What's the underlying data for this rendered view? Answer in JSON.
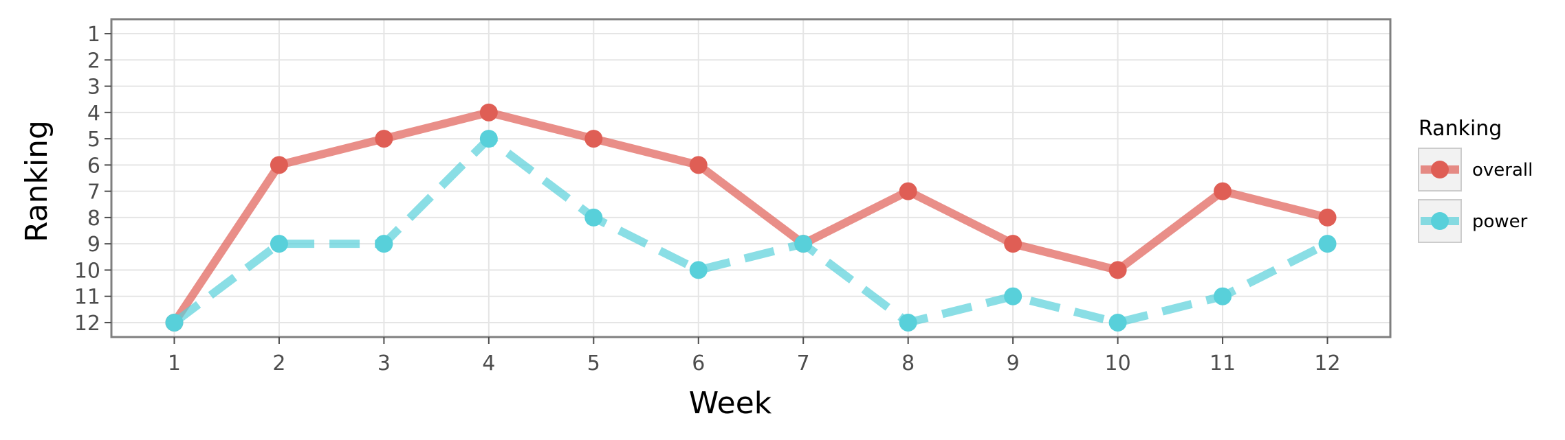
{
  "chart_data": {
    "type": "line",
    "xlabel": "Week",
    "ylabel": "Ranking",
    "x": [
      1,
      2,
      3,
      4,
      5,
      6,
      7,
      8,
      9,
      10,
      11,
      12
    ],
    "x_ticks": [
      "1",
      "2",
      "3",
      "4",
      "5",
      "6",
      "7",
      "8",
      "9",
      "10",
      "11",
      "12"
    ],
    "y_ticks": [
      "1",
      "2",
      "3",
      "4",
      "5",
      "6",
      "7",
      "8",
      "9",
      "10",
      "11",
      "12"
    ],
    "y_reversed": true,
    "xlim": [
      0.4,
      12.6
    ],
    "ylim": [
      0.45,
      12.55
    ],
    "grid": true,
    "legend": {
      "title": "Ranking",
      "position": "right"
    },
    "series": [
      {
        "name": "overall",
        "values": [
          12,
          6,
          5,
          4,
          5,
          6,
          9,
          7,
          9,
          10,
          7,
          8
        ],
        "color": "#df5e55",
        "line_style": "solid"
      },
      {
        "name": "power",
        "values": [
          12,
          9,
          9,
          5,
          8,
          10,
          9,
          12,
          11,
          12,
          11,
          9
        ],
        "color": "#58d0da",
        "line_style": "dashed"
      }
    ]
  }
}
